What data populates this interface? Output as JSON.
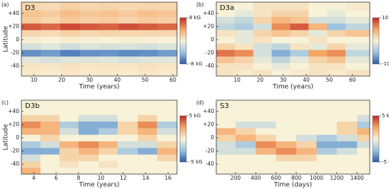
{
  "chart_data": [
    {
      "type": "heatmap",
      "panel_label": "(a)",
      "title": "D3",
      "xlabel": "Time (years)",
      "ylabel": "Latitude",
      "xlim": [
        5.5,
        61.5
      ],
      "ylim": [
        -55,
        57
      ],
      "xticks": [
        10,
        20,
        30,
        40,
        50,
        60
      ],
      "yticks": [
        {
          "value": 40,
          "label": "+40"
        },
        {
          "value": 20,
          "label": "+20"
        },
        0,
        -20,
        -40
      ],
      "xbins": [
        5.5,
        12.5,
        19.5,
        26.5,
        33.5,
        40.5,
        47.5,
        54.5,
        61.5
      ],
      "ybins": [
        -55,
        -45,
        -35,
        -25,
        -15,
        -5,
        5,
        15,
        25,
        35,
        45,
        57
      ],
      "values": [
        [
          0.5,
          0.3,
          0.6,
          0.4,
          0.5,
          0.3,
          0.6,
          0.4
        ],
        [
          0.8,
          0.6,
          0.9,
          0.7,
          0.8,
          0.6,
          0.9,
          0.7
        ],
        [
          -1,
          -1.5,
          -1,
          -1.2,
          -1,
          -1.4,
          -1.1,
          -1
        ],
        [
          -6,
          -5.5,
          -6.5,
          -6,
          -5.8,
          -6.2,
          -6,
          -5.5
        ],
        [
          -1.5,
          -1,
          -1.8,
          -1.2,
          -1.5,
          -1.3,
          -1.6,
          -1.2
        ],
        [
          0.2,
          0,
          0.3,
          0.1,
          0,
          0.2,
          0.1,
          0
        ],
        [
          1.5,
          1.2,
          1.8,
          1.4,
          1.6,
          1.3,
          1.5,
          1.4
        ],
        [
          6.5,
          6,
          7,
          6.5,
          6.2,
          6.8,
          6.4,
          6
        ],
        [
          2,
          1.5,
          2.2,
          1.8,
          2,
          1.6,
          2.1,
          1.8
        ],
        [
          2.5,
          2,
          2.8,
          2.2,
          2.5,
          2.1,
          2.6,
          2.3
        ],
        [
          1.5,
          1.2,
          1.8,
          1.4,
          1.6,
          1.3,
          1.5,
          1.4
        ]
      ],
      "zlim": [
        -8,
        8
      ],
      "zticks": [
        {
          "value": 8,
          "label": "8 kG"
        },
        {
          "value": -8,
          "label": "-8 kG"
        }
      ],
      "colormap": [
        "#2b5aa8",
        "#9cc3e0",
        "#f7f2d8",
        "#f5a665",
        "#c12a26"
      ]
    },
    {
      "type": "heatmap",
      "panel_label": "(b)",
      "title": "D3a",
      "xlabel": "Time (years)",
      "xlim": [
        1,
        67.5
      ],
      "ylim": [
        -55,
        57
      ],
      "xticks": [
        10,
        20,
        30,
        40,
        50,
        60
      ],
      "yticks": [
        {
          "value": 40,
          "label": "+40"
        },
        {
          "value": 20,
          "label": "+20"
        },
        0,
        -20,
        -40
      ],
      "xbins": [
        1,
        9,
        17,
        25,
        33,
        41,
        49,
        57,
        67.5
      ],
      "ybins": [
        -55,
        -45,
        -35,
        -25,
        -15,
        -5,
        5,
        15,
        25,
        35,
        45,
        57
      ],
      "values": [
        [
          1,
          0.5,
          1,
          0,
          0.5,
          1,
          0.5,
          1
        ],
        [
          1,
          1,
          0,
          -1,
          0,
          1,
          1,
          0
        ],
        [
          3,
          2,
          -1,
          -3,
          -1,
          2,
          3,
          -1
        ],
        [
          7,
          6,
          -2,
          -6,
          -4,
          5,
          6,
          -3
        ],
        [
          2,
          1,
          -2,
          -3,
          1,
          -1,
          2,
          -1
        ],
        [
          0,
          -1,
          1,
          0,
          0,
          1,
          0,
          0
        ],
        [
          1,
          -1,
          2,
          3,
          2,
          -1,
          2,
          3
        ],
        [
          -3,
          -4,
          -2,
          6,
          8,
          4,
          -5,
          -3
        ],
        [
          -2,
          -3,
          2,
          4,
          3,
          -2,
          -2,
          -1
        ],
        [
          0,
          -1,
          1,
          2,
          2,
          0,
          -1,
          0
        ],
        [
          0.5,
          0,
          1,
          1,
          1,
          0,
          0,
          0.5
        ]
      ],
      "zlim": [
        -10,
        10
      ],
      "zticks": [
        {
          "value": 10,
          "label": "10 kG"
        },
        {
          "value": -10,
          "label": "-10 kG"
        }
      ],
      "colormap": [
        "#2b5aa8",
        "#9cc3e0",
        "#f7f2d8",
        "#f5a665",
        "#c12a26"
      ]
    },
    {
      "type": "heatmap",
      "panel_label": "(c)",
      "title": "D3b",
      "xlabel": "Time (years)",
      "ylabel": "Latitude",
      "xlim": [
        2.9,
        16.8
      ],
      "ylim": [
        -55,
        57
      ],
      "xticks": [
        4,
        6,
        8,
        10,
        12,
        14,
        16
      ],
      "yticks": [
        {
          "value": 40,
          "label": "+40"
        },
        {
          "value": 20,
          "label": "+20"
        },
        0,
        -20,
        -40
      ],
      "xbins": [
        2.9,
        4.6,
        6.3,
        8,
        9.8,
        11.5,
        13.3,
        15,
        16.8
      ],
      "ybins": [
        -55,
        -45,
        -35,
        -25,
        -15,
        -5,
        5,
        15,
        25,
        35,
        45,
        57
      ],
      "values": [
        [
          2,
          0,
          0,
          0,
          0,
          0,
          0,
          0
        ],
        [
          1,
          0,
          0.5,
          0,
          0.5,
          0,
          0,
          0
        ],
        [
          -1,
          0,
          1,
          1,
          0,
          0,
          0,
          1
        ],
        [
          -3,
          -3,
          1,
          2,
          1,
          -2,
          -3,
          2
        ],
        [
          -2,
          -1,
          2,
          3,
          2,
          -1,
          -1,
          1
        ],
        [
          0,
          1,
          0,
          0,
          0,
          0,
          1,
          0
        ],
        [
          2,
          2,
          -1,
          -3,
          -2,
          1,
          2,
          -1
        ],
        [
          3,
          2,
          -2,
          -3,
          -3,
          1,
          3,
          -2
        ],
        [
          1,
          1,
          0,
          -1,
          -1,
          0,
          1,
          0
        ],
        [
          0,
          0,
          0,
          0,
          0,
          0,
          0,
          0
        ],
        [
          0,
          0,
          0,
          0,
          0,
          0,
          0,
          0
        ]
      ],
      "zlim": [
        -5,
        5
      ],
      "zticks": [
        {
          "value": 5,
          "label": "5 kG"
        },
        {
          "value": -5,
          "label": "-5 kG"
        }
      ],
      "colormap": [
        "#2b5aa8",
        "#9cc3e0",
        "#f7f2d8",
        "#f5a665",
        "#c12a26"
      ]
    },
    {
      "type": "heatmap",
      "panel_label": "(d)",
      "title": "S3",
      "xlabel": "Time (days)",
      "xlim": [
        10,
        1525
      ],
      "ylim": [
        -55,
        57
      ],
      "xticks": [
        200,
        400,
        600,
        800,
        1000,
        1200,
        1400
      ],
      "yticks": [
        {
          "value": 40,
          "label": "+40"
        },
        {
          "value": 20,
          "label": "+20"
        },
        0,
        -20,
        -40
      ],
      "xbins": [
        10,
        200,
        400,
        600,
        800,
        1000,
        1200,
        1400,
        1525
      ],
      "ybins": [
        -55,
        -45,
        -35,
        -25,
        -15,
        -5,
        5,
        15,
        25,
        35,
        45,
        57
      ],
      "values": [
        [
          0,
          0,
          0,
          0,
          0,
          0,
          0,
          0
        ],
        [
          0,
          0,
          0,
          0,
          0,
          0,
          0,
          0
        ],
        [
          0,
          0,
          0,
          1,
          1,
          0,
          0,
          0
        ],
        [
          -1,
          -1,
          2,
          3,
          2,
          -2,
          -1,
          0
        ],
        [
          -1,
          -2,
          3,
          2,
          1,
          -3,
          -3,
          -1
        ],
        [
          1,
          2,
          1,
          0,
          -1,
          -2,
          -1,
          1
        ],
        [
          2,
          1,
          0,
          0,
          0,
          0,
          1,
          2
        ],
        [
          0,
          -1,
          -1,
          0,
          0,
          0,
          1,
          -2
        ],
        [
          0,
          0,
          0,
          0,
          0,
          0,
          0,
          -1
        ],
        [
          0,
          0,
          0,
          0,
          0,
          0,
          0,
          0
        ],
        [
          0,
          0,
          0,
          0,
          0,
          0,
          0,
          0
        ]
      ],
      "zlim": [
        -5,
        5
      ],
      "zticks": [
        {
          "value": 5,
          "label": "5 kG"
        },
        {
          "value": -5,
          "label": "-5 kG"
        }
      ],
      "colormap": [
        "#2b5aa8",
        "#9cc3e0",
        "#f7f2d8",
        "#f5a665",
        "#c12a26"
      ]
    }
  ]
}
